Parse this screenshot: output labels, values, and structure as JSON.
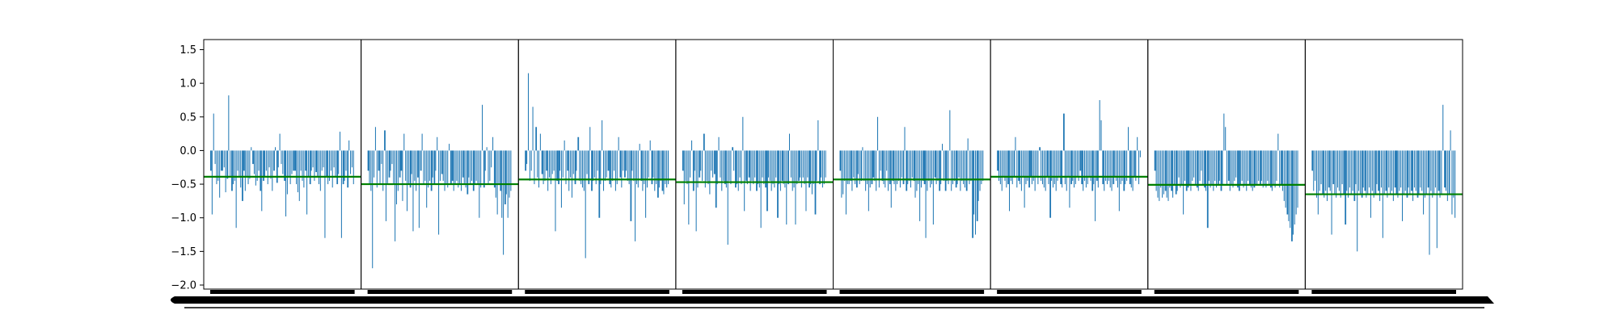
{
  "chart_data": {
    "type": "bar",
    "panel_count": 8,
    "ylim": [
      -2.06,
      1.65
    ],
    "yticks": [
      1.5,
      1.0,
      0.5,
      0.0,
      -0.5,
      -1.0,
      -1.5,
      -2.0
    ],
    "ytick_labels": [
      "1.5",
      "1.0",
      "0.5",
      "0.0",
      "−0.5",
      "−1.0",
      "−1.5",
      "−2.0"
    ],
    "grid": false,
    "legend": "none",
    "title": "",
    "xlabel": "",
    "ylabel": "",
    "mean_lines": [
      -0.39,
      -0.5,
      -0.43,
      -0.47,
      -0.43,
      -0.39,
      -0.51,
      -0.65
    ],
    "bars_per_panel": 96,
    "series": [
      {
        "values": [
          -0.3,
          -0.95,
          0.55,
          -0.2,
          -0.5,
          -0.45,
          -0.7,
          -0.3,
          -0.3,
          -0.25,
          -0.62,
          -0.42,
          0.82,
          -0.4,
          -0.6,
          -0.5,
          -0.45,
          -1.15,
          -0.3,
          -0.4,
          -0.55,
          -0.75,
          -0.3,
          -0.6,
          -0.4,
          -0.5,
          -0.42,
          0.05,
          -0.2,
          -0.35,
          -0.52,
          -0.45,
          -0.3,
          -0.6,
          -0.9,
          -0.45,
          -0.38,
          -0.3,
          -0.5,
          -0.25,
          -0.42,
          -0.6,
          -0.3,
          0.05,
          -0.48,
          -0.25,
          0.25,
          -0.2,
          -0.35,
          -0.45,
          -0.98,
          -0.65,
          -0.4,
          -0.5,
          -0.35,
          -0.3,
          -0.3,
          -0.5,
          -0.62,
          -0.75,
          -0.3,
          -0.45,
          -0.55,
          -0.3,
          -0.95,
          -0.4,
          -0.5,
          -0.3,
          -0.25,
          -0.45,
          -0.32,
          -0.4,
          -0.5,
          -0.6,
          -0.3,
          -0.25,
          -1.3,
          -0.38,
          -0.5,
          -0.45,
          -0.3,
          -0.55,
          -0.25,
          -0.4,
          -0.5,
          -0.35,
          0.28,
          -1.3,
          -0.5,
          -0.45,
          -0.3,
          -0.55,
          0.15,
          -0.35,
          -0.25,
          -0.5
        ]
      },
      {
        "values": [
          -0.3,
          -0.5,
          -0.6,
          -1.75,
          -0.4,
          0.35,
          -0.55,
          -0.3,
          -0.5,
          -0.2,
          -0.6,
          0.3,
          -1.05,
          -0.5,
          -0.4,
          -0.3,
          -0.2,
          -0.5,
          -1.35,
          -0.8,
          -0.6,
          -0.4,
          -0.3,
          -0.75,
          0.25,
          -0.45,
          -0.9,
          -0.5,
          -0.55,
          -0.35,
          -1.2,
          -0.45,
          -0.6,
          -0.4,
          -1.15,
          -0.3,
          0.25,
          -0.5,
          -0.45,
          -0.85,
          -0.55,
          -0.45,
          -0.6,
          -0.4,
          -0.5,
          -0.3,
          0.2,
          -1.25,
          -0.45,
          -0.35,
          -0.45,
          -0.6,
          -0.5,
          -0.55,
          0.1,
          -0.5,
          -0.45,
          -0.6,
          -0.5,
          -0.45,
          -0.55,
          -0.5,
          -0.6,
          -0.4,
          -0.5,
          -0.55,
          -0.65,
          -0.4,
          -0.5,
          -0.45,
          -0.6,
          -0.5,
          -0.45,
          -0.5,
          -1.0,
          -0.55,
          0.68,
          -0.55,
          -0.3,
          0.05,
          -0.5,
          -0.45,
          -0.25,
          0.2,
          -0.55,
          -0.7,
          -0.95,
          -0.5,
          -0.6,
          -1.0,
          -1.55,
          -0.8,
          -0.65,
          -1.0,
          -0.7,
          -0.6
        ]
      },
      {
        "values": [
          -0.3,
          -0.2,
          1.15,
          -0.45,
          -0.3,
          0.65,
          -0.5,
          0.35,
          -0.4,
          -0.55,
          0.25,
          -0.35,
          -0.5,
          -0.45,
          -0.3,
          -0.6,
          -0.4,
          -0.5,
          -0.35,
          -0.3,
          -1.2,
          -0.45,
          -0.5,
          -0.3,
          -0.85,
          -0.4,
          0.15,
          -0.5,
          -0.3,
          -0.6,
          -0.4,
          -0.7,
          -0.35,
          -0.5,
          -0.3,
          0.2,
          -0.45,
          -0.5,
          -0.55,
          -0.6,
          -1.6,
          -0.35,
          -0.5,
          0.35,
          -0.6,
          -0.45,
          -0.4,
          -0.5,
          -0.3,
          -1.0,
          -0.5,
          0.45,
          -0.6,
          -0.45,
          -0.4,
          -0.3,
          -0.5,
          -0.55,
          -0.45,
          -0.3,
          -0.6,
          -0.5,
          0.2,
          -0.4,
          -0.55,
          -0.3,
          -0.4,
          -0.3,
          -0.45,
          -0.5,
          -1.05,
          -0.3,
          -0.45,
          -1.35,
          -0.5,
          -0.55,
          0.1,
          -0.45,
          -0.6,
          -0.5,
          -1.0,
          -0.55,
          -0.4,
          0.15,
          -0.5,
          -0.4,
          -0.6,
          -0.5,
          -0.7,
          -0.55,
          -0.45,
          -0.6,
          -0.65,
          -0.5,
          -0.55,
          -0.5
        ]
      },
      {
        "values": [
          -0.3,
          -0.8,
          -0.45,
          -0.5,
          -1.1,
          -0.4,
          0.15,
          -0.6,
          -0.3,
          -1.2,
          -0.55,
          -0.4,
          -0.3,
          -0.45,
          0.25,
          -0.55,
          -0.45,
          -0.5,
          -0.65,
          -0.3,
          -0.4,
          -0.35,
          -0.85,
          -0.5,
          0.2,
          -0.4,
          -0.6,
          -0.45,
          -0.5,
          -0.55,
          -1.4,
          -0.45,
          -0.5,
          0.05,
          -0.3,
          -0.55,
          -0.5,
          -0.6,
          -0.4,
          -0.5,
          0.5,
          -0.9,
          -0.45,
          -0.5,
          -0.4,
          -0.6,
          -0.45,
          -0.5,
          -0.4,
          -0.6,
          -0.5,
          -0.55,
          -1.15,
          -0.4,
          -0.5,
          -0.55,
          -0.9,
          -0.4,
          -0.45,
          -0.6,
          -0.5,
          -0.55,
          -0.4,
          -1.0,
          -0.5,
          -0.6,
          -0.45,
          -0.5,
          -0.55,
          -1.1,
          -0.5,
          0.25,
          -0.4,
          -0.6,
          -0.55,
          -1.1,
          -0.5,
          -0.45,
          -0.4,
          -0.55,
          -0.4,
          -0.5,
          -0.9,
          -0.4,
          -0.55,
          -0.5,
          -0.65,
          -0.5,
          -0.95,
          -0.45,
          0.45,
          -0.5,
          -0.4,
          -0.55,
          -0.5,
          -0.4
        ]
      },
      {
        "values": [
          -0.3,
          -0.7,
          -0.65,
          -0.45,
          -0.95,
          -0.5,
          -0.5,
          -0.45,
          -0.6,
          -0.4,
          -0.5,
          -0.55,
          -0.35,
          -0.5,
          -0.45,
          0.05,
          -0.45,
          -0.6,
          -0.5,
          -0.9,
          -0.55,
          -0.5,
          -0.4,
          -0.45,
          -0.6,
          0.5,
          -0.55,
          -0.3,
          -0.45,
          -0.5,
          -0.55,
          -0.3,
          -0.6,
          -0.5,
          -0.85,
          -0.45,
          -0.5,
          -0.6,
          -0.5,
          -0.45,
          -0.55,
          -0.4,
          -0.5,
          0.35,
          -0.6,
          -0.5,
          -0.45,
          -0.55,
          -0.4,
          -0.45,
          -0.7,
          -0.6,
          -0.5,
          -1.05,
          -0.55,
          -0.45,
          -0.5,
          -1.3,
          -0.6,
          -0.45,
          -0.55,
          -0.5,
          -1.1,
          -0.4,
          -0.5,
          -0.45,
          -0.6,
          -0.5,
          0.1,
          -0.45,
          -0.6,
          -0.45,
          -0.5,
          0.6,
          -0.6,
          -0.5,
          -0.45,
          -0.55,
          -0.5,
          -0.4,
          -0.6,
          -0.45,
          -0.5,
          -0.55,
          -0.6,
          0.18,
          -0.5,
          -0.45,
          -1.3,
          -0.95,
          -1.25,
          -1.05,
          -0.75,
          -0.6,
          -0.5,
          -0.45
        ]
      },
      {
        "values": [
          -0.3,
          -0.45,
          -0.5,
          -0.6,
          -0.4,
          -0.45,
          -0.55,
          -0.5,
          -0.9,
          -0.45,
          -0.5,
          -0.4,
          0.2,
          -0.55,
          -0.45,
          -0.5,
          -0.6,
          -0.4,
          -0.85,
          -0.5,
          -0.45,
          -0.55,
          -0.4,
          -0.5,
          -0.45,
          -0.6,
          -0.4,
          -0.5,
          0.05,
          -0.45,
          -0.5,
          -0.55,
          -0.6,
          -0.4,
          -0.5,
          -1.0,
          -0.45,
          -0.55,
          -0.5,
          -0.6,
          -0.45,
          -0.4,
          -0.5,
          -0.55,
          0.55,
          -0.5,
          -0.6,
          -0.4,
          -0.85,
          -0.5,
          -0.45,
          -0.55,
          -0.5,
          -0.4,
          -0.45,
          -0.3,
          -0.5,
          -0.6,
          -0.45,
          -0.55,
          -0.5,
          -0.4,
          -0.45,
          -0.6,
          -0.5,
          -1.05,
          -0.45,
          -0.55,
          0.75,
          0.45,
          -0.5,
          -0.6,
          -0.45,
          -0.5,
          -0.45,
          -0.55,
          -0.6,
          -0.5,
          -0.4,
          -0.45,
          -0.55,
          -0.9,
          -0.5,
          -0.45,
          -0.6,
          -0.5,
          -0.45,
          0.35,
          -0.5,
          -0.55,
          -0.6,
          -0.4,
          -0.45,
          0.2,
          -0.5,
          -0.1
        ]
      },
      {
        "values": [
          -0.3,
          -0.6,
          -0.7,
          -0.75,
          -0.55,
          -0.7,
          -0.65,
          -0.6,
          -0.7,
          -0.75,
          -0.55,
          -0.6,
          -0.7,
          -0.5,
          -0.65,
          -0.6,
          -0.4,
          -0.55,
          -0.5,
          -0.95,
          -0.45,
          -0.6,
          -0.55,
          -0.5,
          -0.6,
          -0.45,
          -0.4,
          -0.5,
          -0.55,
          -0.6,
          -0.45,
          -0.3,
          -0.5,
          -0.55,
          -0.6,
          -1.15,
          -0.45,
          -0.55,
          -0.5,
          -0.6,
          -0.45,
          -0.55,
          -0.5,
          -0.45,
          -0.6,
          -0.5,
          0.55,
          0.35,
          -0.5,
          -0.45,
          -0.6,
          -0.5,
          -0.55,
          -0.45,
          -0.4,
          -0.55,
          -0.6,
          -0.5,
          -0.45,
          -0.55,
          -0.5,
          -0.6,
          -0.45,
          -0.5,
          -0.55,
          -0.6,
          -0.55,
          -0.5,
          -0.5,
          -0.45,
          -0.5,
          -0.45,
          -0.55,
          -0.5,
          -0.55,
          -0.45,
          -0.5,
          -0.55,
          -0.6,
          -0.5,
          -0.55,
          -0.45,
          0.25,
          -0.55,
          -0.5,
          -0.6,
          -0.75,
          -0.85,
          -0.95,
          -1.05,
          -1.15,
          -1.35,
          -1.25,
          -1.1,
          -0.95,
          -0.85
        ]
      },
      {
        "values": [
          -0.3,
          -0.6,
          -0.45,
          -0.7,
          -0.95,
          -0.6,
          -0.5,
          -0.65,
          -0.7,
          -0.6,
          -0.75,
          -0.55,
          -0.6,
          -1.25,
          -0.5,
          -0.65,
          -0.7,
          -0.55,
          -0.6,
          -0.7,
          -0.5,
          -0.65,
          -1.1,
          -0.6,
          -0.7,
          -0.55,
          -0.65,
          -0.6,
          -0.75,
          -0.5,
          -1.5,
          -0.6,
          -0.65,
          -0.7,
          -0.55,
          -0.6,
          -0.7,
          -0.65,
          -0.55,
          -1.0,
          -0.6,
          -0.7,
          -0.65,
          -0.5,
          -0.6,
          -0.75,
          -0.55,
          -1.3,
          -0.65,
          -0.6,
          -0.7,
          -0.55,
          -0.65,
          -0.6,
          -0.75,
          -0.55,
          -0.65,
          -0.7,
          -0.6,
          -0.55,
          -1.05,
          -0.65,
          -0.6,
          -0.7,
          -0.55,
          -0.65,
          -0.6,
          -0.75,
          -0.55,
          -0.6,
          -0.7,
          -0.65,
          -0.55,
          -0.6,
          -0.95,
          -0.7,
          -0.65,
          -0.55,
          -1.55,
          -0.6,
          -0.7,
          -0.65,
          -0.55,
          -1.45,
          -0.6,
          -0.7,
          -0.65,
          0.68,
          -0.55,
          -0.6,
          -0.75,
          -0.65,
          0.3,
          -0.95,
          -0.7,
          -1.0
        ]
      }
    ],
    "bar_color": "#1f77b4",
    "mean_line_color": "#008000",
    "axis_color": "#000000",
    "background": "#ffffff"
  }
}
